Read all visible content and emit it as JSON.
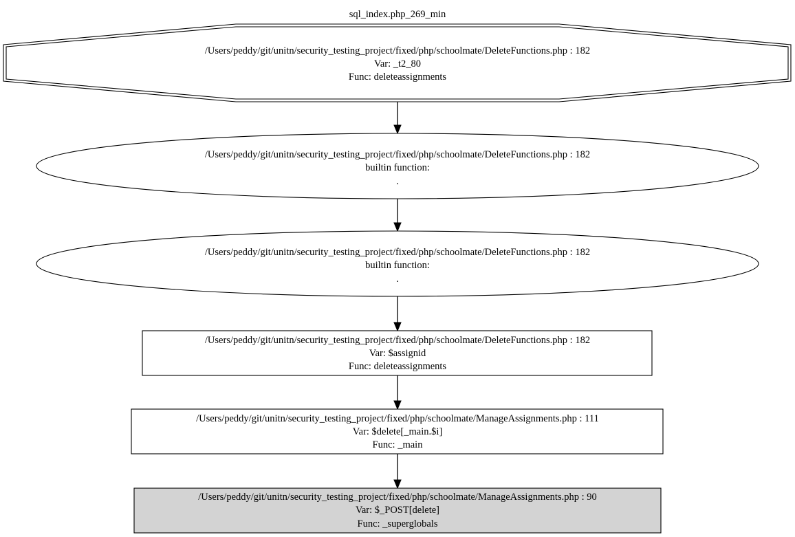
{
  "graph": {
    "title": "sql_index.php_269_min"
  },
  "nodes": [
    {
      "id": "n0",
      "shape": "doubleoctagon",
      "filled": false,
      "lines": [
        "/Users/peddy/git/unitn/security_testing_project/fixed/php/schoolmate/DeleteFunctions.php : 182",
        "Var: _t2_80",
        "Func: deleteassignments"
      ]
    },
    {
      "id": "n1",
      "shape": "ellipse",
      "filled": false,
      "lines": [
        "/Users/peddy/git/unitn/security_testing_project/fixed/php/schoolmate/DeleteFunctions.php : 182",
        "builtin function:",
        "."
      ]
    },
    {
      "id": "n2",
      "shape": "ellipse",
      "filled": false,
      "lines": [
        "/Users/peddy/git/unitn/security_testing_project/fixed/php/schoolmate/DeleteFunctions.php : 182",
        "builtin function:",
        "."
      ]
    },
    {
      "id": "n3",
      "shape": "box",
      "filled": false,
      "lines": [
        "/Users/peddy/git/unitn/security_testing_project/fixed/php/schoolmate/DeleteFunctions.php : 182",
        "Var: $assignid",
        "Func: deleteassignments"
      ]
    },
    {
      "id": "n4",
      "shape": "box",
      "filled": false,
      "lines": [
        "/Users/peddy/git/unitn/security_testing_project/fixed/php/schoolmate/ManageAssignments.php : 111",
        "Var: $delete[_main.$i]",
        "Func: _main"
      ]
    },
    {
      "id": "n5",
      "shape": "box",
      "filled": true,
      "lines": [
        "/Users/peddy/git/unitn/security_testing_project/fixed/php/schoolmate/ManageAssignments.php : 90",
        "Var: $_POST[delete]",
        "Func: _superglobals"
      ]
    }
  ],
  "edges": [
    {
      "from": "n0",
      "to": "n1"
    },
    {
      "from": "n1",
      "to": "n2"
    },
    {
      "from": "n2",
      "to": "n3"
    },
    {
      "from": "n3",
      "to": "n4"
    },
    {
      "from": "n4",
      "to": "n5"
    }
  ],
  "colors": {
    "filled_node": "#d3d3d3",
    "stroke": "#000000",
    "background": "#ffffff"
  }
}
